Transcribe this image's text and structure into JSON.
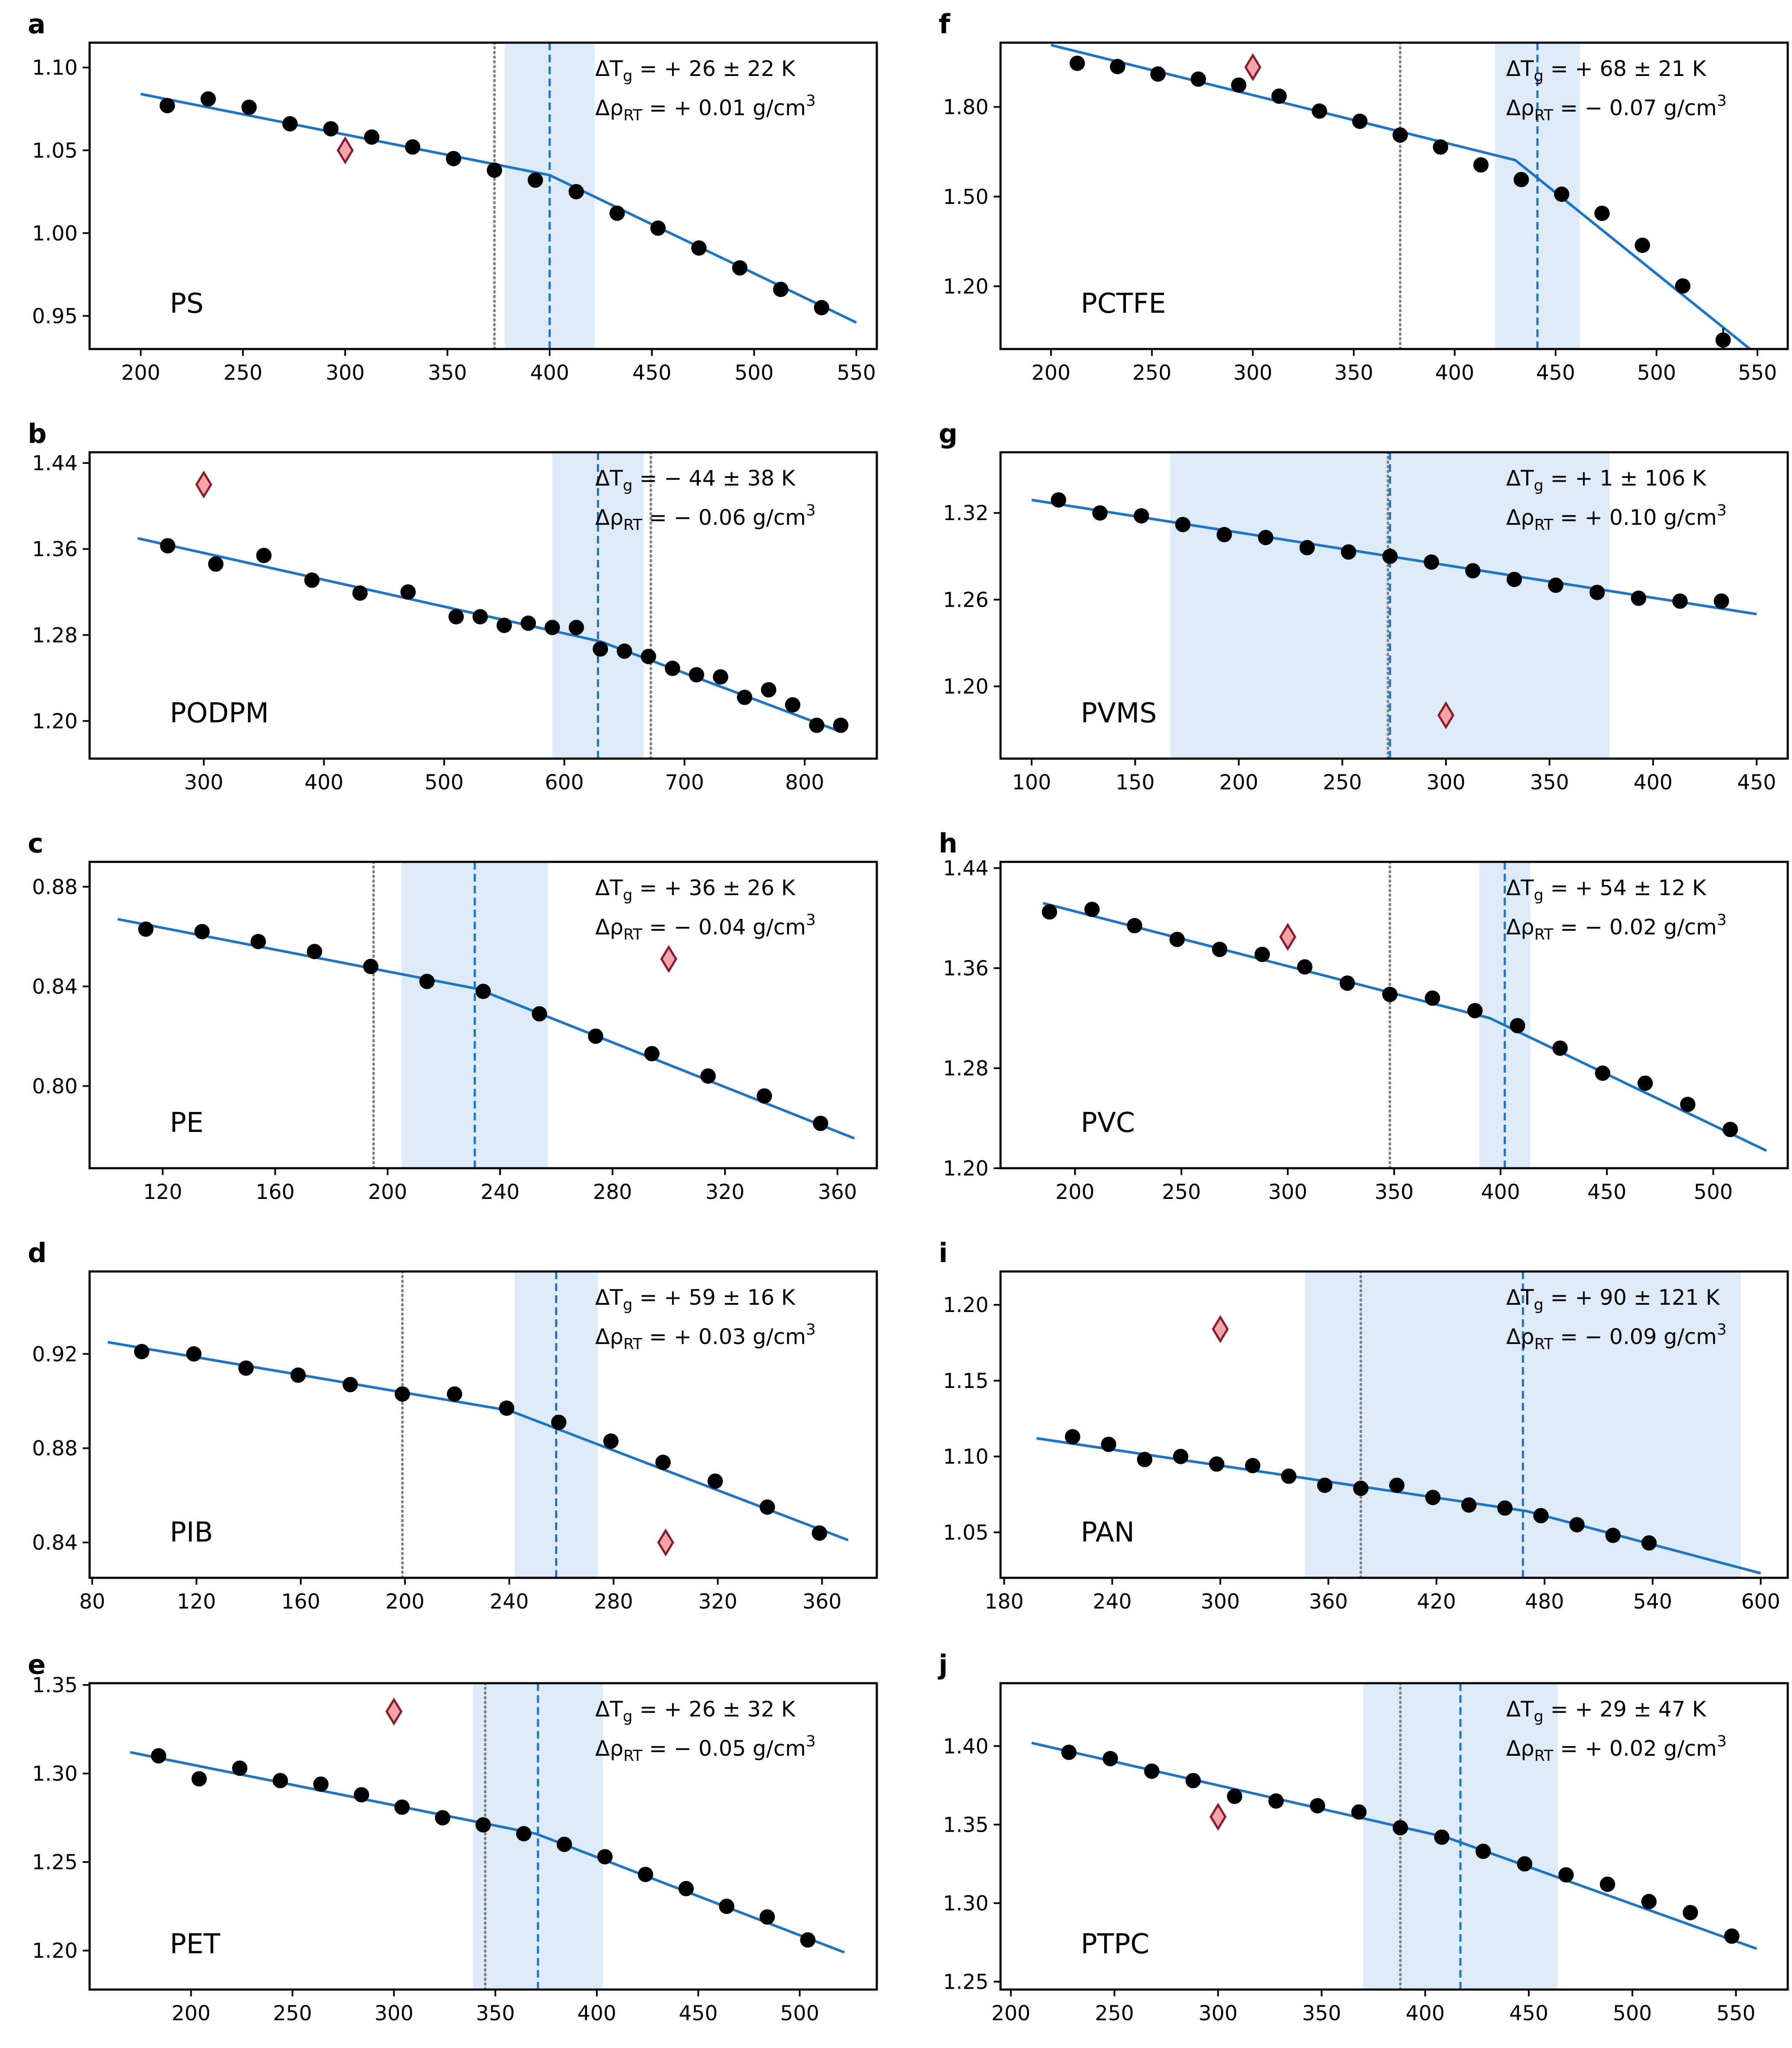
{
  "style": {
    "fit_color": "#1874cd",
    "tg_dashed_color": "#1874cd",
    "shade_color": "#ddeaf8",
    "ref_dotted_color": "#808080",
    "marker_color": "#000000",
    "ref_diamond_fill": "#f4a3a8",
    "ref_diamond_edge": "#8b1a2b"
  },
  "chart_data": [
    {
      "panel": "a",
      "name": "PS",
      "type": "scatter",
      "xlim": [
        175,
        560
      ],
      "ylim": [
        0.93,
        1.115
      ],
      "xticks": [
        "200",
        "250",
        "300",
        "350",
        "400",
        "450",
        "500",
        "550"
      ],
      "yticks": [
        "0.95",
        "1.00",
        "1.05",
        "1.10"
      ],
      "x": [
        213,
        233,
        253,
        273,
        293,
        313,
        333,
        353,
        373,
        393,
        413,
        433,
        453,
        473,
        493,
        513,
        533
      ],
      "y": [
        1.077,
        1.081,
        1.076,
        1.066,
        1.063,
        1.058,
        1.052,
        1.045,
        1.038,
        1.032,
        1.025,
        1.012,
        1.003,
        0.991,
        0.979,
        0.966,
        0.955
      ],
      "fit": [
        [
          200,
          1.084
        ],
        [
          400,
          1.035
        ],
        [
          550,
          0.946
        ]
      ],
      "tg_fit": 400,
      "tg_band": [
        378,
        422
      ],
      "tg_ref": 373,
      "ref_point": [
        300,
        1.05
      ],
      "delta_tg_label": "ΔTg = + 26 ± 22 K",
      "delta_rho_label": "ΔρRT = + 0.01 g/cm3"
    },
    {
      "panel": "b",
      "name": "PODPM",
      "type": "scatter",
      "xlim": [
        205,
        860
      ],
      "ylim": [
        1.165,
        1.45
      ],
      "xticks": [
        "300",
        "400",
        "500",
        "600",
        "700",
        "800"
      ],
      "yticks": [
        "1.20",
        "1.28",
        "1.36",
        "1.44"
      ],
      "x": [
        270,
        310,
        350,
        390,
        430,
        470,
        510,
        530,
        550,
        570,
        590,
        610,
        630,
        650,
        670,
        690,
        710,
        730,
        750,
        770,
        790,
        810,
        830
      ],
      "y": [
        1.363,
        1.346,
        1.354,
        1.331,
        1.319,
        1.32,
        1.297,
        1.297,
        1.289,
        1.291,
        1.287,
        1.287,
        1.267,
        1.265,
        1.26,
        1.249,
        1.243,
        1.241,
        1.222,
        1.229,
        1.215,
        1.196,
        1.196
      ],
      "fit": [
        [
          245,
          1.37
        ],
        [
          630,
          1.274
        ],
        [
          830,
          1.19
        ]
      ],
      "tg_fit": 628,
      "tg_band": [
        590,
        666
      ],
      "tg_ref": 672,
      "ref_point": [
        300,
        1.42
      ],
      "delta_tg_label": "ΔTg = − 44 ± 38 K",
      "delta_rho_label": "ΔρRT = − 0.06 g/cm3"
    },
    {
      "panel": "c",
      "name": "PE",
      "type": "scatter",
      "xlim": [
        94,
        374
      ],
      "ylim": [
        0.767,
        0.89
      ],
      "xticks": [
        "120",
        "160",
        "200",
        "240",
        "280",
        "320",
        "360"
      ],
      "yticks": [
        "0.80",
        "0.84",
        "0.88"
      ],
      "x": [
        114,
        134,
        154,
        174,
        194,
        214,
        234,
        254,
        274,
        294,
        314,
        334,
        354
      ],
      "y": [
        0.863,
        0.862,
        0.858,
        0.854,
        0.848,
        0.842,
        0.838,
        0.829,
        0.82,
        0.813,
        0.804,
        0.796,
        0.785
      ],
      "fit": [
        [
          104,
          0.867
        ],
        [
          232,
          0.839
        ],
        [
          366,
          0.779
        ]
      ],
      "tg_fit": 231,
      "tg_band": [
        205,
        257
      ],
      "tg_ref": 195,
      "ref_point": [
        300,
        0.851
      ],
      "delta_tg_label": "ΔTg = + 36 ± 26 K",
      "delta_rho_label": "ΔρRT = − 0.04 g/cm3"
    },
    {
      "panel": "d",
      "name": "PIB",
      "type": "scatter",
      "xlim": [
        79,
        381
      ],
      "ylim": [
        0.825,
        0.955
      ],
      "xticks": [
        "80",
        "120",
        "160",
        "200",
        "240",
        "280",
        "320",
        "360"
      ],
      "yticks": [
        "0.84",
        "0.88",
        "0.92"
      ],
      "x": [
        99,
        119,
        139,
        159,
        179,
        199,
        219,
        239,
        259,
        279,
        299,
        319,
        339,
        359
      ],
      "y": [
        0.921,
        0.92,
        0.914,
        0.911,
        0.907,
        0.903,
        0.903,
        0.897,
        0.891,
        0.883,
        0.874,
        0.866,
        0.855,
        0.844
      ],
      "fit": [
        [
          86,
          0.925
        ],
        [
          240,
          0.896
        ],
        [
          370,
          0.841
        ]
      ],
      "tg_fit": 258,
      "tg_band": [
        242,
        274
      ],
      "tg_ref": 199,
      "ref_point": [
        300,
        0.84
      ],
      "delta_tg_label": "ΔTg = + 59 ± 16 K",
      "delta_rho_label": "ΔρRT = + 0.03 g/cm3"
    },
    {
      "panel": "e",
      "name": "PET",
      "type": "scatter",
      "xlim": [
        150,
        538
      ],
      "ylim": [
        1.178,
        1.351
      ],
      "xticks": [
        "200",
        "250",
        "300",
        "350",
        "400",
        "450",
        "500"
      ],
      "yticks": [
        "1.20",
        "1.25",
        "1.30",
        "1.35"
      ],
      "x": [
        184,
        204,
        224,
        244,
        264,
        284,
        304,
        324,
        344,
        364,
        384,
        404,
        424,
        444,
        464,
        484,
        504
      ],
      "y": [
        1.31,
        1.297,
        1.303,
        1.296,
        1.294,
        1.288,
        1.281,
        1.275,
        1.271,
        1.266,
        1.26,
        1.253,
        1.243,
        1.235,
        1.225,
        1.219,
        1.206
      ],
      "fit": [
        [
          170,
          1.312
        ],
        [
          370,
          1.266
        ],
        [
          522,
          1.199
        ]
      ],
      "tg_fit": 371,
      "tg_band": [
        339,
        403
      ],
      "tg_ref": 345,
      "ref_point": [
        300,
        1.335
      ],
      "delta_tg_label": "ΔTg = + 26 ± 32 K",
      "delta_rho_label": "ΔρRT = − 0.05 g/cm3"
    },
    {
      "panel": "f",
      "name": "PCTFE",
      "type": "scatter",
      "xlim": [
        175,
        565
      ],
      "ylim": [
        0.99,
        2.015
      ],
      "xticks": [
        "200",
        "250",
        "300",
        "350",
        "400",
        "450",
        "500",
        "550"
      ],
      "yticks": [
        "1.20",
        "1.50",
        "1.80"
      ],
      "x": [
        213,
        233,
        253,
        273,
        293,
        313,
        333,
        353,
        373,
        393,
        413,
        433,
        453,
        473,
        493,
        513,
        533
      ],
      "y": [
        1.946,
        1.935,
        1.91,
        1.893,
        1.873,
        1.836,
        1.786,
        1.752,
        1.706,
        1.666,
        1.606,
        1.557,
        1.508,
        1.444,
        1.337,
        1.201,
        1.02
      ],
      "yerr": [
        0,
        0,
        0,
        0,
        0,
        0,
        0,
        0,
        0,
        0,
        0,
        0,
        0,
        0,
        0,
        0,
        0.04
      ],
      "fit": [
        [
          200,
          2.007
        ],
        [
          430,
          1.622
        ],
        [
          550,
          0.97
        ]
      ],
      "tg_fit": 441,
      "tg_band": [
        420,
        462
      ],
      "tg_ref": 373,
      "ref_point": [
        300,
        1.933
      ],
      "delta_tg_label": "ΔTg = + 68 ± 21 K",
      "delta_rho_label": "ΔρRT = − 0.07 g/cm3"
    },
    {
      "panel": "g",
      "name": "PVMS",
      "type": "scatter",
      "xlim": [
        85,
        465
      ],
      "ylim": [
        1.15,
        1.362
      ],
      "xticks": [
        "100",
        "150",
        "200",
        "250",
        "300",
        "350",
        "400",
        "450"
      ],
      "yticks": [
        "1.20",
        "1.26",
        "1.32"
      ],
      "x": [
        113,
        133,
        153,
        173,
        193,
        213,
        233,
        253,
        273,
        293,
        313,
        333,
        353,
        373,
        393,
        413,
        433
      ],
      "y": [
        1.329,
        1.32,
        1.318,
        1.312,
        1.305,
        1.303,
        1.296,
        1.293,
        1.29,
        1.286,
        1.28,
        1.274,
        1.27,
        1.265,
        1.261,
        1.259,
        1.259
      ],
      "fit": [
        [
          100,
          1.329
        ],
        [
          273,
          1.29
        ],
        [
          450,
          1.25
        ]
      ],
      "tg_fit": 273,
      "tg_band": [
        167,
        379
      ],
      "tg_ref": 272,
      "ref_point": [
        300,
        1.18
      ],
      "delta_tg_label": "ΔTg = + 1 ± 106 K",
      "delta_rho_label": "ΔρRT = + 0.10 g/cm3"
    },
    {
      "panel": "h",
      "name": "PVC",
      "type": "scatter",
      "xlim": [
        165,
        535
      ],
      "ylim": [
        1.2,
        1.445
      ],
      "xticks": [
        "200",
        "250",
        "300",
        "350",
        "400",
        "450",
        "500"
      ],
      "yticks": [
        "1.20",
        "1.28",
        "1.36",
        "1.44"
      ],
      "x": [
        188,
        208,
        228,
        248,
        268,
        288,
        308,
        328,
        348,
        368,
        388,
        408,
        428,
        448,
        468,
        488,
        508
      ],
      "y": [
        1.405,
        1.407,
        1.394,
        1.383,
        1.375,
        1.371,
        1.361,
        1.348,
        1.339,
        1.336,
        1.326,
        1.314,
        1.296,
        1.276,
        1.268,
        1.251,
        1.231
      ],
      "fit": [
        [
          185,
          1.412
        ],
        [
          395,
          1.32
        ],
        [
          525,
          1.214
        ]
      ],
      "tg_fit": 402,
      "tg_band": [
        390,
        414
      ],
      "tg_ref": 348,
      "ref_point": [
        300,
        1.385
      ],
      "delta_tg_label": "ΔTg = + 54 ± 12 K",
      "delta_rho_label": "ΔρRT = − 0.02 g/cm3"
    },
    {
      "panel": "i",
      "name": "PAN",
      "type": "scatter",
      "xlim": [
        178,
        615
      ],
      "ylim": [
        1.02,
        1.222
      ],
      "xticks": [
        "180",
        "240",
        "300",
        "360",
        "420",
        "480",
        "540",
        "600"
      ],
      "yticks": [
        "1.05",
        "1.10",
        "1.15",
        "1.20"
      ],
      "x": [
        218,
        238,
        258,
        278,
        298,
        318,
        338,
        358,
        378,
        398,
        418,
        438,
        458,
        478,
        498,
        518,
        538
      ],
      "y": [
        1.113,
        1.108,
        1.098,
        1.1,
        1.095,
        1.094,
        1.087,
        1.081,
        1.079,
        1.081,
        1.073,
        1.068,
        1.066,
        1.061,
        1.055,
        1.048,
        1.043
      ],
      "fit": [
        [
          198,
          1.112
        ],
        [
          470,
          1.064
        ],
        [
          600,
          1.023
        ]
      ],
      "tg_fit": 468,
      "tg_band": [
        347,
        589
      ],
      "tg_ref": 378,
      "ref_point": [
        300,
        1.184
      ],
      "delta_tg_label": "ΔTg = + 90 ± 121 K",
      "delta_rho_label": "ΔρRT = − 0.09 g/cm3"
    },
    {
      "panel": "j",
      "name": "PTPC",
      "type": "scatter",
      "xlim": [
        195,
        575
      ],
      "ylim": [
        1.245,
        1.44
      ],
      "xticks": [
        "200",
        "250",
        "300",
        "350",
        "400",
        "450",
        "500",
        "550"
      ],
      "yticks": [
        "1.25",
        "1.30",
        "1.35",
        "1.40"
      ],
      "x": [
        228,
        248,
        268,
        288,
        308,
        328,
        348,
        368,
        388,
        408,
        428,
        448,
        468,
        488,
        508,
        528,
        548
      ],
      "y": [
        1.396,
        1.392,
        1.384,
        1.378,
        1.368,
        1.365,
        1.362,
        1.358,
        1.348,
        1.342,
        1.333,
        1.325,
        1.318,
        1.312,
        1.301,
        1.294,
        1.279
      ],
      "fit": [
        [
          210,
          1.402
        ],
        [
          410,
          1.342
        ],
        [
          560,
          1.271
        ]
      ],
      "tg_fit": 417,
      "tg_band": [
        370,
        464
      ],
      "tg_ref": 388,
      "ref_point": [
        300,
        1.355
      ],
      "delta_tg_label": "ΔTg = + 29 ± 47 K",
      "delta_rho_label": "ΔρRT = + 0.02 g/cm3"
    }
  ]
}
